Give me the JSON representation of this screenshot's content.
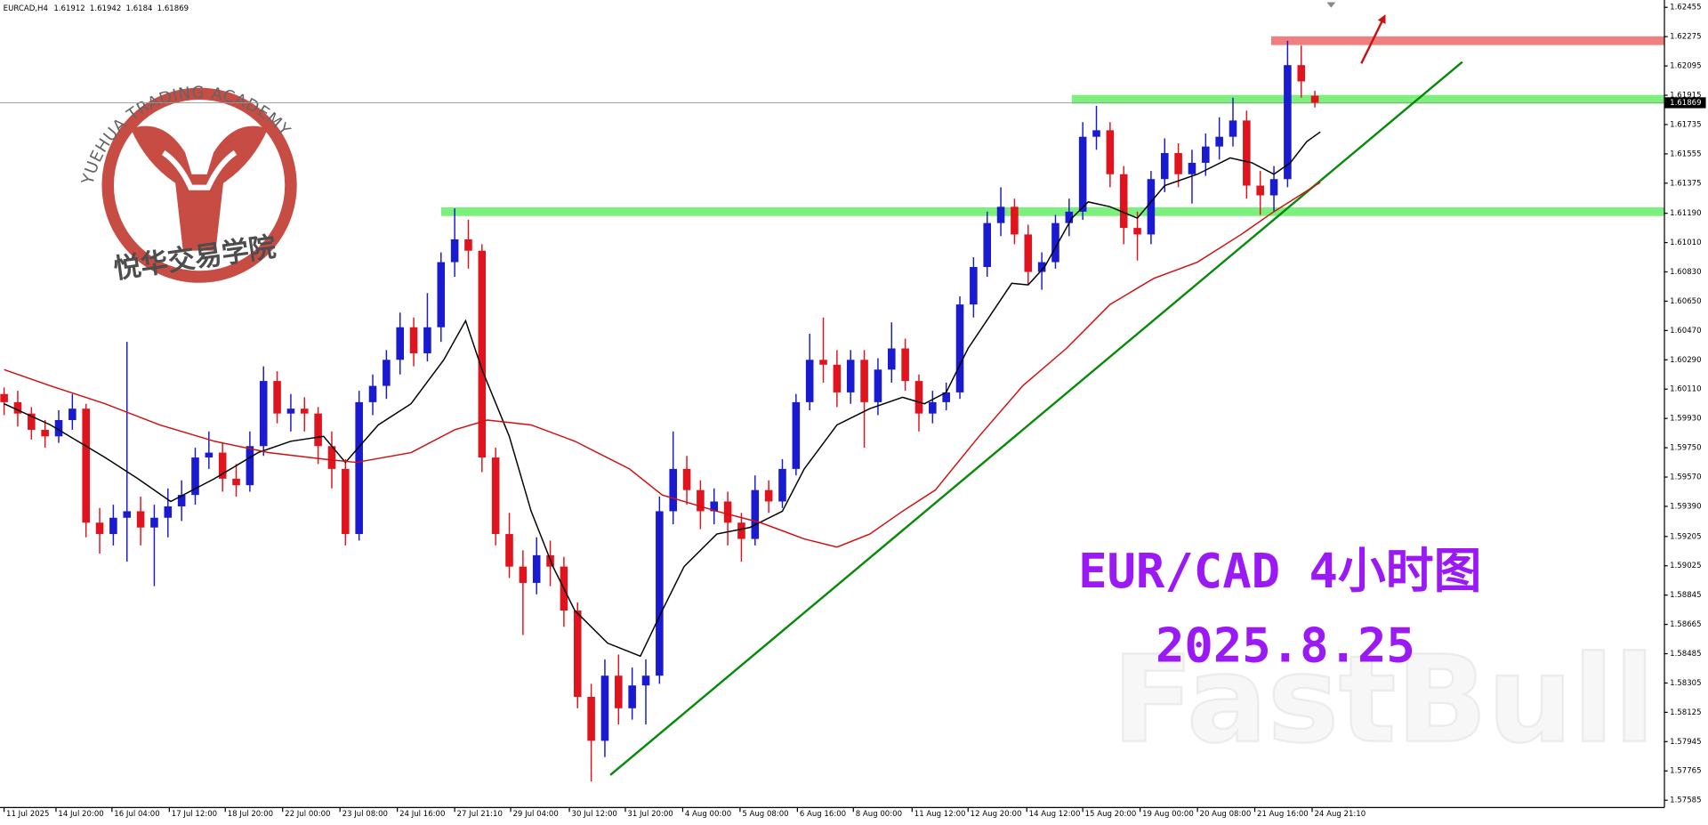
{
  "chart_data": {
    "type": "candlestick",
    "symbol": "EURCAD,H4",
    "title": "EUR/CAD 4小时图",
    "subtitle": "2025.8.25",
    "watermarks": [
      "YUEHUA TRADING ACADEMY",
      "悦华交易学院",
      "FastBull"
    ],
    "up_color": "#1a1ad0",
    "down_color": "#e0141e",
    "xlim": [
      -0.3,
      121.6
    ],
    "ylim": [
      1.5754,
      1.625
    ],
    "yticks": [
      1.62455,
      1.62275,
      1.62095,
      1.61915,
      1.61735,
      1.61555,
      1.61375,
      {
        "value": 1.6119,
        "label": "1.61190"
      },
      {
        "value": 1.6101,
        "label": "1.61010"
      },
      {
        "value": 1.6083,
        "label": "1.60830"
      },
      {
        "value": 1.6065,
        "label": "1.60650"
      },
      {
        "value": 1.6047,
        "label": "1.60470"
      },
      {
        "value": 1.6029,
        "label": "1.60290"
      },
      {
        "value": 1.6011,
        "label": "1.60110"
      },
      {
        "value": 1.5993,
        "label": "1.59930"
      },
      {
        "value": 1.5975,
        "label": "1.59750"
      },
      {
        "value": 1.5957,
        "label": "1.59570"
      },
      {
        "value": 1.5939,
        "label": "1.59390"
      },
      1.59205,
      1.59025,
      1.58845,
      1.58665,
      1.58485,
      1.58305,
      1.58125,
      1.57945,
      1.57765,
      1.57585
    ],
    "xticks": [
      {
        "value": 0,
        "label": "11 Jul 2025"
      },
      {
        "value": 3.8,
        "label": "14 Jul 20:00"
      },
      {
        "value": 7.9,
        "label": "16 Jul 04:00"
      },
      {
        "value": 12.1,
        "label": "17 Jul 12:00"
      },
      {
        "value": 16.2,
        "label": "18 Jul 20:00"
      },
      {
        "value": 20.4,
        "label": "22 Jul 00:00"
      },
      {
        "value": 24.6,
        "label": "23 Jul 08:00"
      },
      {
        "value": 28.8,
        "label": "24 Jul 16:00"
      },
      {
        "value": 33,
        "label": "27 Jul 21:10"
      },
      {
        "value": 37.1,
        "label": "29 Jul 04:00"
      },
      {
        "value": 41.4,
        "label": "30 Jul 12:00"
      },
      {
        "value": 45.5,
        "label": "31 Jul 20:00"
      },
      {
        "value": 49.7,
        "label": "4 Aug 00:00"
      },
      {
        "value": 53.9,
        "label": "5 Aug 08:00"
      },
      {
        "value": 58.1,
        "label": "6 Aug 16:00"
      },
      {
        "value": 62.2,
        "label": "8 Aug 00:00"
      },
      {
        "value": 66.5,
        "label": "11 Aug 12:00"
      },
      {
        "value": 70.6,
        "label": "12 Aug 20:00"
      },
      {
        "value": 74.9,
        "label": "14 Aug 12:00"
      },
      {
        "value": 79,
        "label": "15 Aug 20:00"
      },
      {
        "value": 83.2,
        "label": "19 Aug 00:00"
      },
      {
        "value": 87.4,
        "label": "20 Aug 08:00"
      },
      {
        "value": 91.6,
        "label": "21 Aug 16:00"
      },
      {
        "value": 95.8,
        "label": "24 Aug 21:10"
      }
    ],
    "candles": [
      [
        1.6008,
        1.6012,
        1.5995,
        1.6003
      ],
      [
        1.6003,
        1.601,
        1.5988,
        1.5996
      ],
      [
        1.5996,
        1.6,
        1.598,
        1.5986
      ],
      [
        1.5986,
        1.5992,
        1.5975,
        1.5982
      ],
      [
        1.5982,
        1.5998,
        1.5978,
        1.5992
      ],
      [
        1.5992,
        1.6008,
        1.5986,
        1.5999
      ],
      [
        1.5999,
        1.6002,
        1.592,
        1.5929
      ],
      [
        1.5929,
        1.5938,
        1.591,
        1.5922
      ],
      [
        1.5922,
        1.594,
        1.5915,
        1.5932
      ],
      [
        1.5932,
        1.604,
        1.5905,
        1.5936
      ],
      [
        1.5936,
        1.5945,
        1.5915,
        1.5926
      ],
      [
        1.5926,
        1.594,
        1.589,
        1.5932
      ],
      [
        1.5932,
        1.595,
        1.592,
        1.5939
      ],
      [
        1.5939,
        1.5955,
        1.593,
        1.5946
      ],
      [
        1.5946,
        1.5975,
        1.594,
        1.5969
      ],
      [
        1.5969,
        1.5985,
        1.5962,
        1.5972
      ],
      [
        1.5972,
        1.5978,
        1.5948,
        1.5956
      ],
      [
        1.5956,
        1.5965,
        1.5945,
        1.5952
      ],
      [
        1.5952,
        1.5985,
        1.5948,
        1.5976
      ],
      [
        1.5976,
        1.6025,
        1.597,
        1.6016
      ],
      [
        1.6016,
        1.6022,
        1.599,
        1.5996
      ],
      [
        1.5996,
        1.6008,
        1.5985,
        1.5999
      ],
      [
        1.5999,
        1.6006,
        1.5985,
        1.5996
      ],
      [
        1.5996,
        1.6,
        1.5965,
        1.5976
      ],
      [
        1.5976,
        1.5985,
        1.595,
        1.5962
      ],
      [
        1.5962,
        1.5968,
        1.5915,
        1.5922
      ],
      [
        1.5922,
        1.601,
        1.5918,
        1.6003
      ],
      [
        1.6003,
        1.602,
        1.5995,
        1.6013
      ],
      [
        1.6013,
        1.6035,
        1.6005,
        1.6029
      ],
      [
        1.6029,
        1.6058,
        1.602,
        1.6049
      ],
      [
        1.6049,
        1.6055,
        1.6025,
        1.6033
      ],
      [
        1.6033,
        1.607,
        1.6028,
        1.6049
      ],
      [
        1.6049,
        1.6095,
        1.604,
        1.6089
      ],
      [
        1.6089,
        1.6122,
        1.608,
        1.6103
      ],
      [
        1.6103,
        1.6115,
        1.6085,
        1.6096
      ],
      [
        1.6096,
        1.61,
        1.596,
        1.5969
      ],
      [
        1.5969,
        1.5975,
        1.5915,
        1.5922
      ],
      [
        1.5922,
        1.5935,
        1.5895,
        1.5902
      ],
      [
        1.5902,
        1.5912,
        1.586,
        1.5892
      ],
      [
        1.5892,
        1.592,
        1.5885,
        1.5909
      ],
      [
        1.5909,
        1.5918,
        1.589,
        1.5902
      ],
      [
        1.5902,
        1.5908,
        1.5865,
        1.5875
      ],
      [
        1.5875,
        1.588,
        1.5815,
        1.5822
      ],
      [
        1.5822,
        1.583,
        1.577,
        1.5795
      ],
      [
        1.5795,
        1.5845,
        1.5785,
        1.5835
      ],
      [
        1.5835,
        1.5848,
        1.5805,
        1.5815
      ],
      [
        1.5815,
        1.584,
        1.5808,
        1.5829
      ],
      [
        1.5829,
        1.5845,
        1.5805,
        1.5835
      ],
      [
        1.5835,
        1.5945,
        1.583,
        1.5936
      ],
      [
        1.5936,
        1.5985,
        1.5928,
        1.5962
      ],
      [
        1.5962,
        1.597,
        1.594,
        1.5949
      ],
      [
        1.5949,
        1.5955,
        1.5925,
        1.5936
      ],
      [
        1.5936,
        1.595,
        1.5928,
        1.5942
      ],
      [
        1.5942,
        1.5948,
        1.5915,
        1.5929
      ],
      [
        1.5929,
        1.5935,
        1.5905,
        1.5919
      ],
      [
        1.5919,
        1.5958,
        1.5915,
        1.5949
      ],
      [
        1.5949,
        1.5955,
        1.5935,
        1.5942
      ],
      [
        1.5942,
        1.5968,
        1.5938,
        1.5962
      ],
      [
        1.5962,
        1.6008,
        1.5958,
        1.6003
      ],
      [
        1.6003,
        1.6045,
        1.5998,
        1.6029
      ],
      [
        1.6029,
        1.6055,
        1.6015,
        1.6026
      ],
      [
        1.6026,
        1.6035,
        1.6,
        1.6009
      ],
      [
        1.6009,
        1.6035,
        1.6002,
        1.6029
      ],
      [
        1.6029,
        1.6035,
        1.5975,
        1.6003
      ],
      [
        1.6003,
        1.603,
        1.5995,
        1.6023
      ],
      [
        1.6023,
        1.6052,
        1.6015,
        1.6036
      ],
      [
        1.6036,
        1.6042,
        1.601,
        1.6016
      ],
      [
        1.6016,
        1.602,
        1.5985,
        1.5996
      ],
      [
        1.5996,
        1.601,
        1.599,
        1.6003
      ],
      [
        1.6003,
        1.6015,
        1.5998,
        1.6009
      ],
      [
        1.6009,
        1.6068,
        1.6005,
        1.6063
      ],
      [
        1.6063,
        1.6092,
        1.6055,
        1.6086
      ],
      [
        1.6086,
        1.612,
        1.608,
        1.6113
      ],
      [
        1.6113,
        1.6135,
        1.6105,
        1.6123
      ],
      [
        1.6123,
        1.6128,
        1.61,
        1.6106
      ],
      [
        1.6106,
        1.6112,
        1.6075,
        1.6083
      ],
      [
        1.6083,
        1.6095,
        1.6072,
        1.6089
      ],
      [
        1.6089,
        1.6118,
        1.6085,
        1.6113
      ],
      [
        1.6113,
        1.6128,
        1.6105,
        1.612
      ],
      [
        1.612,
        1.6175,
        1.6115,
        1.6166
      ],
      [
        1.6166,
        1.6185,
        1.6158,
        1.617
      ],
      [
        1.617,
        1.6175,
        1.6135,
        1.6143
      ],
      [
        1.6143,
        1.6148,
        1.61,
        1.611
      ],
      [
        1.611,
        1.612,
        1.609,
        1.6106
      ],
      [
        1.6106,
        1.6145,
        1.61,
        1.614
      ],
      [
        1.614,
        1.6165,
        1.6132,
        1.6156
      ],
      [
        1.6156,
        1.6162,
        1.6135,
        1.6143
      ],
      [
        1.6143,
        1.6158,
        1.6125,
        1.615
      ],
      [
        1.615,
        1.6168,
        1.6142,
        1.616
      ],
      [
        1.616,
        1.6178,
        1.6152,
        1.6166
      ],
      [
        1.6166,
        1.619,
        1.616,
        1.6176
      ],
      [
        1.6176,
        1.6182,
        1.6128,
        1.6136
      ],
      [
        1.6136,
        1.6145,
        1.6118,
        1.613
      ],
      [
        1.613,
        1.6148,
        1.612,
        1.614
      ],
      [
        1.614,
        1.6225,
        1.6135,
        1.621
      ],
      [
        1.621,
        1.6222,
        1.619,
        1.62
      ],
      [
        1.61912,
        1.61942,
        1.6184,
        1.61869
      ]
    ],
    "series": [
      {
        "color": "#000000",
        "x": [
          0,
          3.4,
          7.4,
          9.8,
          12.2,
          15.4,
          18.6,
          21,
          23.4,
          25,
          27.4,
          29.8,
          32.2,
          33.8,
          35,
          37,
          38.6,
          40.2,
          41.8,
          44.2,
          46.6,
          48.2,
          49.8,
          52.2,
          54.6,
          57,
          58.6,
          61,
          63.4,
          65.8,
          67.4,
          69,
          70.6,
          72.2,
          73.8,
          75,
          76.2,
          78.2,
          79.4,
          81,
          83,
          85,
          87.4,
          89.8,
          91.4,
          93,
          94.2,
          95.4,
          96.4
        ],
        "values": [
          1.6002,
          1.5989,
          1.5969,
          1.5956,
          1.5942,
          1.5956,
          1.5972,
          1.5979,
          1.5982,
          1.5966,
          1.5989,
          1.6002,
          1.6029,
          1.6053,
          1.6023,
          1.5982,
          1.5936,
          1.5902,
          1.5875,
          1.5855,
          1.5847,
          1.5875,
          1.5902,
          1.5922,
          1.5926,
          1.5936,
          1.5962,
          1.5989,
          1.5999,
          1.6006,
          1.6002,
          1.6009,
          1.6036,
          1.6056,
          1.6076,
          1.6075,
          1.6086,
          1.6116,
          1.6126,
          1.6123,
          1.6116,
          1.6136,
          1.6143,
          1.6153,
          1.615,
          1.6143,
          1.615,
          1.6163,
          1.6169
        ]
      },
      {
        "color": "#d01010",
        "x": [
          0,
          3.4,
          7.4,
          11.4,
          15.4,
          19.4,
          23.4,
          25.8,
          29.8,
          33,
          35.4,
          38.6,
          41.8,
          45.8,
          48.2,
          52.2,
          55.4,
          58.6,
          61,
          63.4,
          65.8,
          68.2,
          71.4,
          74.6,
          77.8,
          81,
          84.2,
          87.4,
          90.6,
          93,
          96.4
        ],
        "values": [
          1.6023,
          1.6013,
          1.6002,
          1.5989,
          1.5979,
          1.5972,
          1.5968,
          1.5966,
          1.5972,
          1.5986,
          1.5992,
          1.5989,
          1.5979,
          1.5962,
          1.5946,
          1.5936,
          1.5929,
          1.5919,
          1.5914,
          1.5922,
          1.5936,
          1.5949,
          1.5982,
          1.6013,
          1.6036,
          1.6063,
          1.6079,
          1.6089,
          1.6106,
          1.612,
          1.6138
        ]
      }
    ],
    "levels": [
      {
        "price": 1.612,
        "from": 32,
        "color": "#7cf07c"
      },
      {
        "price": 1.6189,
        "from": 78.2,
        "color": "#7cf07c"
      },
      {
        "price": 1.6225,
        "from": 92.8,
        "color": "#f08080"
      }
    ],
    "trendline": {
      "x": [
        44.4,
        106.8
      ],
      "y": [
        1.5774,
        1.6212
      ],
      "color": "#0a8a0a"
    },
    "arrow": {
      "x": [
        99.4,
        101.1
      ],
      "y": [
        1.6211,
        1.624
      ],
      "color": "#c81414"
    }
  }
}
